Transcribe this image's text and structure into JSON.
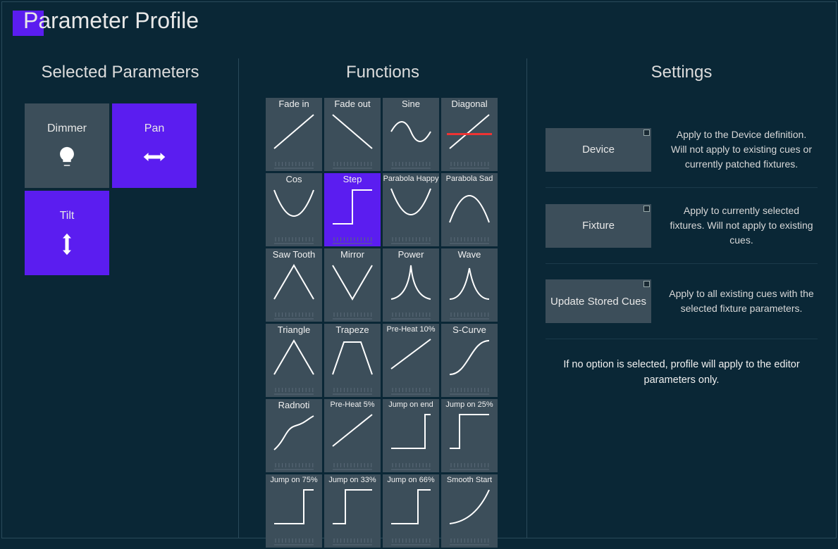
{
  "title": "Parameter Profile",
  "columns": {
    "parameters": {
      "heading": "Selected Parameters"
    },
    "functions": {
      "heading": "Functions"
    },
    "settings": {
      "heading": "Settings"
    }
  },
  "parameters": [
    {
      "label": "Dimmer",
      "icon": "bulb",
      "selected": false
    },
    {
      "label": "Pan",
      "icon": "arrow-lr",
      "selected": true
    },
    {
      "label": "Tilt",
      "icon": "arrow-ud",
      "selected": true
    }
  ],
  "functions": [
    {
      "label": "Fade in",
      "curve": "fadein",
      "selected": false
    },
    {
      "label": "Fade out",
      "curve": "fadeout",
      "selected": false
    },
    {
      "label": "Sine",
      "curve": "sine",
      "selected": false
    },
    {
      "label": "Diagonal",
      "curve": "diagonal",
      "selected": false,
      "accent": true
    },
    {
      "label": "Cos",
      "curve": "cos",
      "selected": false
    },
    {
      "label": "Step",
      "curve": "step",
      "selected": true
    },
    {
      "label": "Parabola Happy",
      "curve": "par-happy",
      "selected": false,
      "small": true
    },
    {
      "label": "Parabola Sad",
      "curve": "par-sad",
      "selected": false,
      "small": true
    },
    {
      "label": "Saw Tooth",
      "curve": "sawtooth",
      "selected": false
    },
    {
      "label": "Mirror",
      "curve": "mirror",
      "selected": false
    },
    {
      "label": "Power",
      "curve": "power",
      "selected": false
    },
    {
      "label": "Wave",
      "curve": "wave",
      "selected": false
    },
    {
      "label": "Triangle",
      "curve": "triangle",
      "selected": false
    },
    {
      "label": "Trapeze",
      "curve": "trapeze",
      "selected": false
    },
    {
      "label": "Pre-Heat 10%",
      "curve": "preheat10",
      "selected": false,
      "small": true
    },
    {
      "label": "S-Curve",
      "curve": "scurve",
      "selected": false
    },
    {
      "label": "Radnoti",
      "curve": "radnoti",
      "selected": false
    },
    {
      "label": "Pre-Heat 5%",
      "curve": "preheat5",
      "selected": false,
      "small": true
    },
    {
      "label": "Jump on end",
      "curve": "jump-end",
      "selected": false,
      "small": true
    },
    {
      "label": "Jump on 25%",
      "curve": "jump25",
      "selected": false,
      "small": true
    },
    {
      "label": "Jump on 75%",
      "curve": "jump75",
      "selected": false,
      "small": true
    },
    {
      "label": "Jump on 33%",
      "curve": "jump33",
      "selected": false,
      "small": true
    },
    {
      "label": "Jump on 66%",
      "curve": "jump66",
      "selected": false,
      "small": true
    },
    {
      "label": "Smooth Start",
      "curve": "smoothstart",
      "selected": false,
      "small": true
    }
  ],
  "settings": {
    "options": [
      {
        "label": "Device",
        "desc": "Apply to the Device definition.\nWill not apply to existing cues or currently patched fixtures."
      },
      {
        "label": "Fixture",
        "desc": "Apply to currently selected fixtures. Will not apply to existing cues."
      },
      {
        "label": "Update Stored Cues",
        "desc": "Apply to all existing cues with the selected fixture parameters."
      }
    ],
    "footer": "If no option is selected, profile will apply to the editor parameters only."
  },
  "colors": {
    "background": "#0a2736",
    "tile": "#3c4e5a",
    "selected": "#5b1df0",
    "accent_line": "#e33333",
    "text": "#e8e8e8",
    "border": "#2a4a5a"
  },
  "curve_style": {
    "stroke": "#ffffff",
    "stroke_width": 2
  }
}
